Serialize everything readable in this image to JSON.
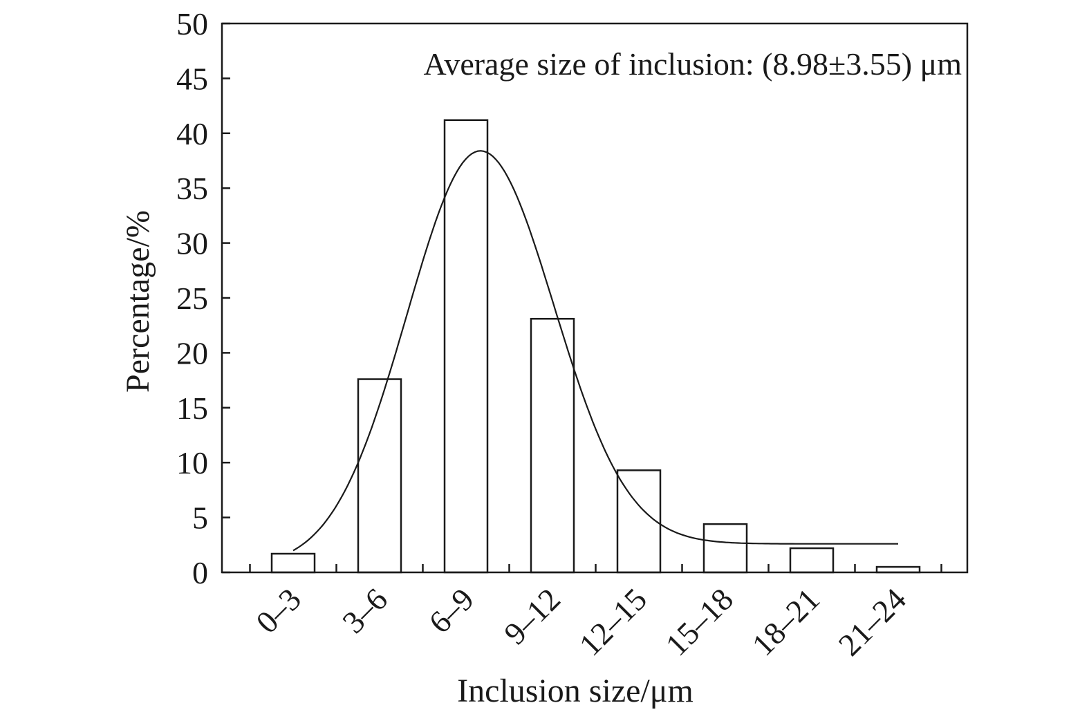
{
  "chart_data": {
    "type": "bar",
    "xlabel": "Inclusion size/μm",
    "ylabel": "Percentage/%",
    "annotation": "Average size of inclusion: (8.98±3.55) μm",
    "categories": [
      "0–3",
      "3–6",
      "6–9",
      "9–12",
      "12–15",
      "15–18",
      "18–21",
      "21–24"
    ],
    "values": [
      1.7,
      17.6,
      41.2,
      23.1,
      9.3,
      4.4,
      2.2,
      0.5
    ],
    "ylim": [
      0,
      50
    ],
    "yticks": [
      "0",
      "5",
      "10",
      "15",
      "20",
      "25",
      "30",
      "35",
      "40",
      "45",
      "50"
    ],
    "grid": false,
    "fit_curve": {
      "type": "line",
      "description_of_shape": "gaussian",
      "mean": 8.0,
      "sigma": 2.55,
      "peak": 38.4,
      "baseline": 2.6,
      "x_range": [
        1.5,
        22.5
      ]
    }
  }
}
